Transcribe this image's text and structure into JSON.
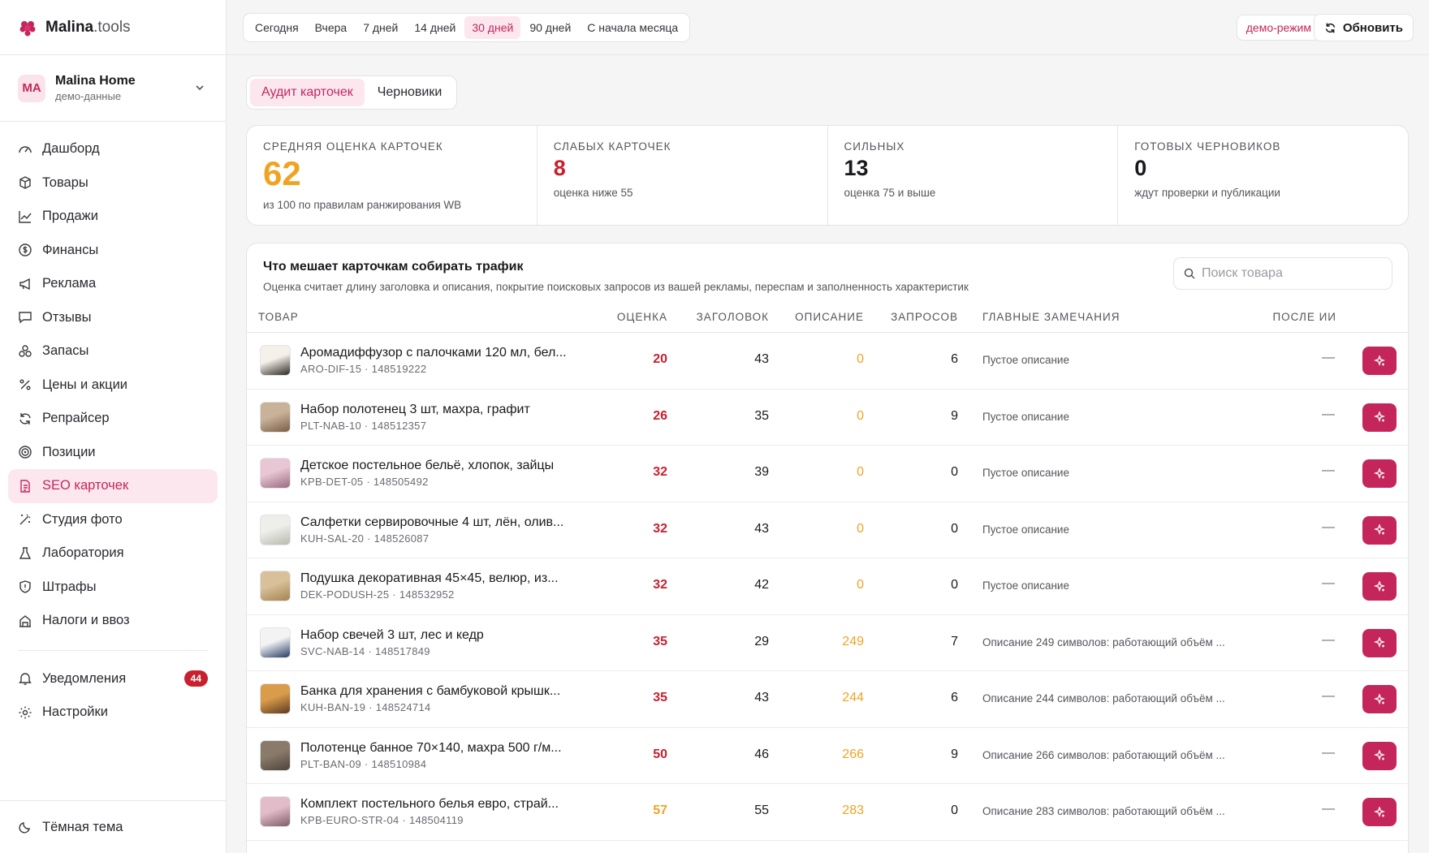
{
  "brand": {
    "name_bold": "Malina",
    "name_suffix": ".tools"
  },
  "account": {
    "initials": "MA",
    "name": "Malina Home",
    "subtitle": "демо-данные"
  },
  "sidebar": {
    "items": [
      {
        "label": "Дашборд",
        "icon": "dashboard-icon"
      },
      {
        "label": "Товары",
        "icon": "box-icon"
      },
      {
        "label": "Продажи",
        "icon": "chart-line-icon"
      },
      {
        "label": "Финансы",
        "icon": "dollar-icon"
      },
      {
        "label": "Реклама",
        "icon": "megaphone-icon"
      },
      {
        "label": "Отзывы",
        "icon": "message-icon"
      },
      {
        "label": "Запасы",
        "icon": "boxes-icon"
      },
      {
        "label": "Цены и акции",
        "icon": "percent-icon"
      },
      {
        "label": "Репрайсер",
        "icon": "refresh-icon"
      },
      {
        "label": "Позиции",
        "icon": "target-icon"
      },
      {
        "label": "SEO карточек",
        "icon": "document-icon",
        "active": true
      },
      {
        "label": "Студия фото",
        "icon": "wand-icon"
      },
      {
        "label": "Лаборатория",
        "icon": "flask-icon"
      },
      {
        "label": "Штрафы",
        "icon": "shield-icon"
      },
      {
        "label": "Налоги и ввоз",
        "icon": "building-icon"
      }
    ],
    "notifications": {
      "label": "Уведомления",
      "count": "44"
    },
    "settings": {
      "label": "Настройки"
    },
    "theme": {
      "label": "Тёмная тема"
    }
  },
  "topbar": {
    "periods": [
      "Сегодня",
      "Вчера",
      "7 дней",
      "14 дней",
      "30 дней",
      "90 дней",
      "С начала месяца"
    ],
    "active_period": "30 дней",
    "demo_label": "демо-режим",
    "refresh_label": "Обновить"
  },
  "tabs": {
    "audit": "Аудит карточек",
    "drafts": "Черновики"
  },
  "stats": [
    {
      "label": "СРЕДНЯЯ ОЦЕНКА КАРТОЧЕК",
      "value": "62",
      "note": "из 100 по правилам ранжирования WB"
    },
    {
      "label": "СЛАБЫХ КАРТОЧЕК",
      "value": "8",
      "note": "оценка ниже 55"
    },
    {
      "label": "СИЛЬНЫХ",
      "value": "13",
      "note": "оценка 75 и выше"
    },
    {
      "label": "ГОТОВЫХ ЧЕРНОВИКОВ",
      "value": "0",
      "note": "ждут проверки и публикации"
    }
  ],
  "panel": {
    "title": "Что мешает карточкам собирать трафик",
    "subtitle": "Оценка считает длину заголовка и описания, покрытие поисковых запросов из вашей рекламы, переспам и заполненность характеристик",
    "search_placeholder": "Поиск товара",
    "columns": {
      "product": "ТОВАР",
      "score": "ОЦЕНКА",
      "title": "ЗАГОЛОВОК",
      "desc": "ОПИСАНИЕ",
      "queries": "ЗАПРОСОВ",
      "notes": "ГЛАВНЫЕ ЗАМЕЧАНИЯ",
      "after": "ПОСЛЕ ИИ"
    },
    "rows": [
      {
        "name": "Аромадиффузор с палочками 120 мл, бел...",
        "sku": "ARO-DIF-15 · 148519222",
        "score": "20",
        "title": "43",
        "desc": "0",
        "queries": "6",
        "note": "Пустое описание",
        "after": "—",
        "score_color": "red"
      },
      {
        "name": "Набор полотенец 3 шт, махра, графит",
        "sku": "PLT-NAB-10 · 148512357",
        "score": "26",
        "title": "35",
        "desc": "0",
        "queries": "9",
        "note": "Пустое описание",
        "after": "—",
        "score_color": "red"
      },
      {
        "name": "Детское постельное бельё, хлопок, зайцы",
        "sku": "KPB-DET-05 · 148505492",
        "score": "32",
        "title": "39",
        "desc": "0",
        "queries": "0",
        "note": "Пустое описание",
        "after": "—",
        "score_color": "red"
      },
      {
        "name": "Салфетки сервировочные 4 шт, лён, олив...",
        "sku": "KUH-SAL-20 · 148526087",
        "score": "32",
        "title": "43",
        "desc": "0",
        "queries": "0",
        "note": "Пустое описание",
        "after": "—",
        "score_color": "red"
      },
      {
        "name": "Подушка декоративная 45×45, велюр, из...",
        "sku": "DEK-PODUSH-25 · 148532952",
        "score": "32",
        "title": "42",
        "desc": "0",
        "queries": "0",
        "note": "Пустое описание",
        "after": "—",
        "score_color": "red"
      },
      {
        "name": "Набор свечей 3 шт, лес и кедр",
        "sku": "SVC-NAB-14 · 148517849",
        "score": "35",
        "title": "29",
        "desc": "249",
        "queries": "7",
        "note": "Описание 249 символов: работающий объём ...",
        "after": "—",
        "score_color": "red"
      },
      {
        "name": "Банка для хранения с бамбуковой крышк...",
        "sku": "KUH-BAN-19 · 148524714",
        "score": "35",
        "title": "43",
        "desc": "244",
        "queries": "6",
        "note": "Описание 244 символов: работающий объём ...",
        "after": "—",
        "score_color": "red"
      },
      {
        "name": "Полотенце банное 70×140, махра 500 г/м...",
        "sku": "PLT-BAN-09 · 148510984",
        "score": "50",
        "title": "46",
        "desc": "266",
        "queries": "9",
        "note": "Описание 266 символов: работающий объём ...",
        "after": "—",
        "score_color": "red"
      },
      {
        "name": "Комплект постельного белья евро, страй...",
        "sku": "KPB-EURO-STR-04 · 148504119",
        "score": "57",
        "title": "55",
        "desc": "283",
        "queries": "0",
        "note": "Описание 283 символов: работающий объём ...",
        "after": "—",
        "score_color": "amber"
      }
    ]
  },
  "colors": {
    "accent": "#c4265c",
    "accent_bg": "#fce7ef",
    "danger": "#c8202f",
    "warning": "#f0a323"
  }
}
